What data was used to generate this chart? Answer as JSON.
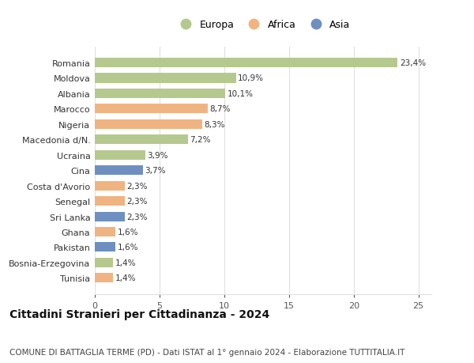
{
  "countries": [
    "Romania",
    "Moldova",
    "Albania",
    "Marocco",
    "Nigeria",
    "Macedonia d/N.",
    "Ucraina",
    "Cina",
    "Costa d'Avorio",
    "Senegal",
    "Sri Lanka",
    "Ghana",
    "Pakistan",
    "Bosnia-Erzegovina",
    "Tunisia"
  ],
  "values": [
    23.4,
    10.9,
    10.1,
    8.7,
    8.3,
    7.2,
    3.9,
    3.7,
    2.3,
    2.3,
    2.3,
    1.6,
    1.6,
    1.4,
    1.4
  ],
  "labels": [
    "23,4%",
    "10,9%",
    "10,1%",
    "8,7%",
    "8,3%",
    "7,2%",
    "3,9%",
    "3,7%",
    "2,3%",
    "2,3%",
    "2,3%",
    "1,6%",
    "1,6%",
    "1,4%",
    "1,4%"
  ],
  "continents": [
    "Europa",
    "Europa",
    "Europa",
    "Africa",
    "Africa",
    "Europa",
    "Europa",
    "Asia",
    "Africa",
    "Africa",
    "Asia",
    "Africa",
    "Asia",
    "Europa",
    "Africa"
  ],
  "colors": {
    "Europa": "#b5c98e",
    "Africa": "#f0b482",
    "Asia": "#6e8fc0"
  },
  "legend_labels": [
    "Europa",
    "Africa",
    "Asia"
  ],
  "legend_colors": [
    "#b5c98e",
    "#f0b482",
    "#6e8fc0"
  ],
  "xlim": [
    0,
    26
  ],
  "xticks": [
    0,
    5,
    10,
    15,
    20,
    25
  ],
  "title": "Cittadini Stranieri per Cittadinanza - 2024",
  "subtitle": "COMUNE DI BATTAGLIA TERME (PD) - Dati ISTAT al 1° gennaio 2024 - Elaborazione TUTTITALIA.IT",
  "bg_color": "#ffffff",
  "grid_color": "#e0e0e0",
  "bar_height": 0.62,
  "label_fontsize": 7.5,
  "ytick_fontsize": 8,
  "xtick_fontsize": 8,
  "title_fontsize": 10,
  "subtitle_fontsize": 7.5
}
